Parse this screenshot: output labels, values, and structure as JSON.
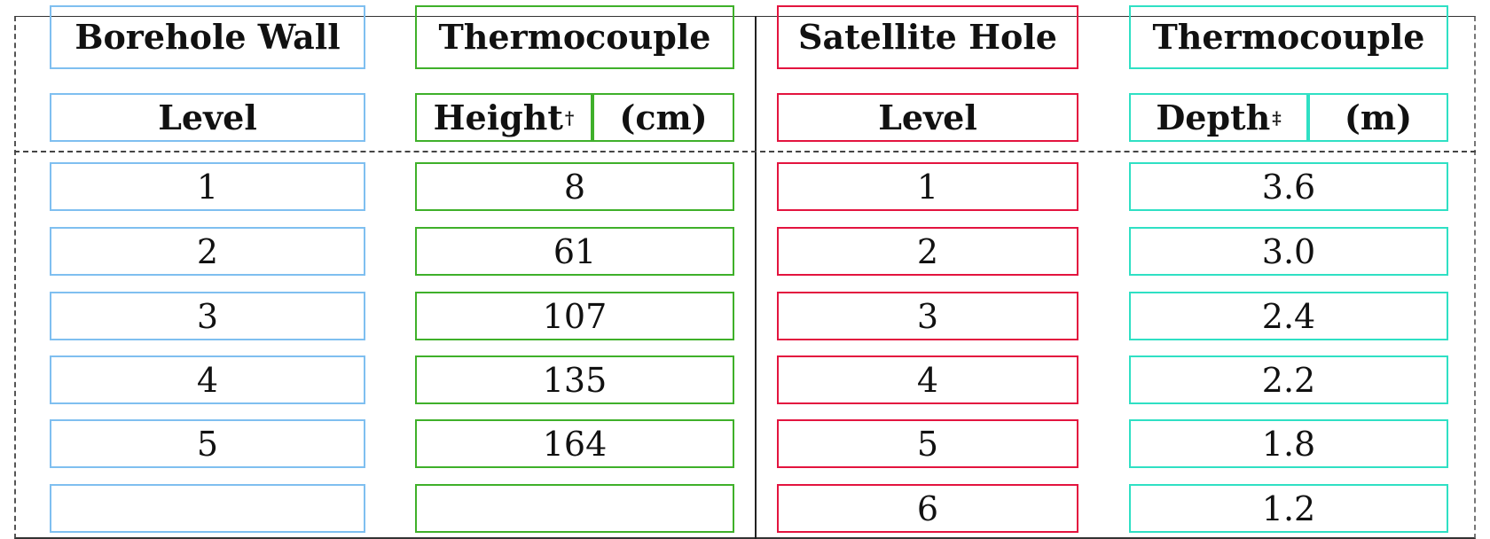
{
  "columns": [
    {
      "header_line1": "Borehole Wall",
      "header_line2": "Level",
      "values": [
        "1",
        "2",
        "3",
        "4",
        "5",
        ""
      ]
    },
    {
      "header_line1": "Thermocouple",
      "header_line2": "Height",
      "header_line2_mark": "†",
      "header_line2_unit": "(cm)",
      "values": [
        "8",
        "61",
        "107",
        "135",
        "164",
        ""
      ]
    },
    {
      "header_line1": "Satellite Hole",
      "header_line2": "Level",
      "values": [
        "1",
        "2",
        "3",
        "4",
        "5",
        "6"
      ]
    },
    {
      "header_line1": "Thermocouple",
      "header_line2": "Depth",
      "header_line2_mark": "‡",
      "header_line2_unit": "(m)",
      "values": [
        "3.6",
        "3.0",
        "2.4",
        "2.2",
        "1.8",
        "1.2"
      ]
    }
  ],
  "colors": {
    "column_0_box": "#7fbff0",
    "column_1_box": "#3fb02a",
    "column_2_box": "#e3143f",
    "column_3_box": "#2fe0c4"
  }
}
